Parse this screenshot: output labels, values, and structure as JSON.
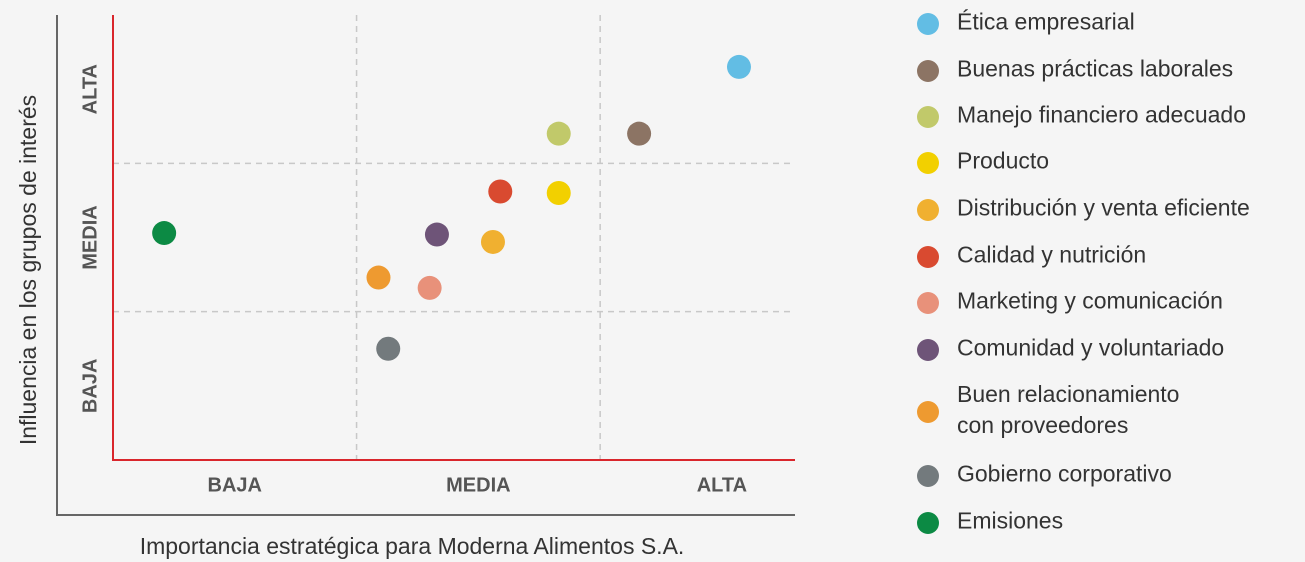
{
  "chart_data": {
    "type": "scatter",
    "x_label": "Importancia estratégica para Moderna Alimentos S.A.",
    "y_label": "Influencia en los grupos de interés",
    "xlim": [
      0,
      2.8
    ],
    "ylim": [
      0,
      3
    ],
    "xticks": [
      {
        "value": 0.5,
        "label": "BAJA"
      },
      {
        "value": 1.5,
        "label": "MEDIA"
      },
      {
        "value": 2.5,
        "label": "ALTA"
      }
    ],
    "yticks": [
      {
        "value": 0.5,
        "label": "BAJA"
      },
      {
        "value": 1.5,
        "label": "MEDIA"
      },
      {
        "value": 2.5,
        "label": "ALTA"
      }
    ],
    "xgrid": [
      1,
      2
    ],
    "ygrid": [
      1,
      2
    ],
    "grid": true,
    "series": [
      {
        "name": "Ética empresarial",
        "color": "#62bde4",
        "x": [
          2.57
        ],
        "values": [
          2.65
        ]
      },
      {
        "name": "Buenas prácticas laborales",
        "color": "#8c7464",
        "x": [
          2.16
        ],
        "values": [
          2.2
        ]
      },
      {
        "name": "Manejo financiero adecuado",
        "color": "#c1c96a",
        "x": [
          1.83
        ],
        "values": [
          2.2
        ]
      },
      {
        "name": "Producto",
        "color": "#f2d000",
        "x": [
          1.83
        ],
        "values": [
          1.8
        ]
      },
      {
        "name": "Distribución y venta eficiente",
        "color": "#f0b030",
        "x": [
          1.56
        ],
        "values": [
          1.47
        ]
      },
      {
        "name": "Calidad y nutrición",
        "color": "#d94a30",
        "x": [
          1.59
        ],
        "values": [
          1.81
        ]
      },
      {
        "name": "Marketing y comunicación",
        "color": "#e8917a",
        "x": [
          1.3
        ],
        "values": [
          1.16
        ]
      },
      {
        "name": "Comunidad y voluntariado",
        "color": "#6e5478",
        "x": [
          1.33
        ],
        "values": [
          1.52
        ]
      },
      {
        "name": "Buen relacionamiento\ncon proveedores",
        "color": "#ee9a30",
        "x": [
          1.09
        ],
        "values": [
          1.23
        ]
      },
      {
        "name": "Gobierno corporativo",
        "color": "#737a7d",
        "x": [
          1.13
        ],
        "values": [
          0.75
        ]
      },
      {
        "name": "Emisiones",
        "color": "#0c8a44",
        "x": [
          0.21
        ],
        "values": [
          1.53
        ]
      }
    ]
  }
}
